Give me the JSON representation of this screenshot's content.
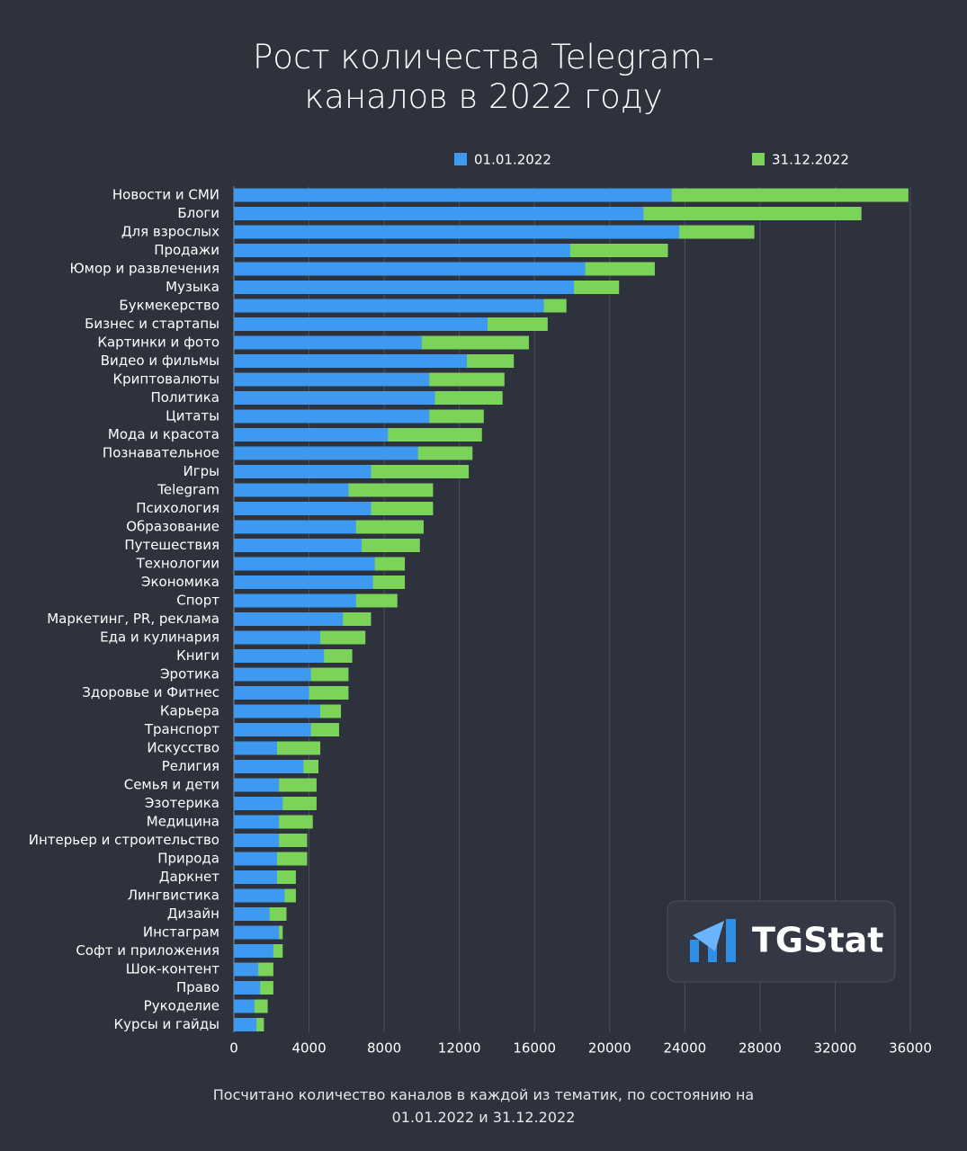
{
  "chart_data": {
    "type": "bar",
    "orientation": "horizontal",
    "title": "Рост количества Telegram-каналов в 2022 году",
    "footnote": "Посчитано количество каналов в каждой из тематик, по состоянию на 01.01.2022 и 31.12.2022",
    "logo": "TGStat",
    "categories": [
      "Новости и СМИ",
      "Блоги",
      "Для взрослых",
      "Продажи",
      "Юмор и развлечения",
      "Музыка",
      "Букмекерство",
      "Бизнес и стартапы",
      "Картинки и фото",
      "Видео и фильмы",
      "Криптовалюты",
      "Политика",
      "Цитаты",
      "Мода и красота",
      "Познавательное",
      "Игры",
      "Telegram",
      "Психология",
      "Образование",
      "Путешествия",
      "Технологии",
      "Экономика",
      "Спорт",
      "Маркетинг, PR, реклама",
      "Еда и кулинария",
      "Книги",
      "Эротика",
      "Здоровье и Фитнес",
      "Карьера",
      "Транспорт",
      "Искусство",
      "Религия",
      "Семья и дети",
      "Эзотерика",
      "Медицина",
      "Интерьер и строительство",
      "Природа",
      "Даркнет",
      "Лингвистика",
      "Дизайн",
      "Инстаграм",
      "Софт и приложения",
      "Шок-контент",
      "Право",
      "Рукоделие",
      "Курсы и гайды"
    ],
    "series": [
      {
        "name": "01.01.2022",
        "color": "#3d9af0",
        "values": [
          23300,
          21800,
          23700,
          17900,
          18700,
          18100,
          16500,
          13500,
          10000,
          12400,
          10400,
          10700,
          10400,
          8200,
          9800,
          7300,
          6100,
          7300,
          6500,
          6800,
          7500,
          7400,
          6500,
          5800,
          4600,
          4800,
          4100,
          4000,
          4600,
          4100,
          2300,
          3700,
          2400,
          2600,
          2400,
          2400,
          2300,
          2300,
          2700,
          1900,
          2400,
          2100,
          1300,
          1400,
          1100,
          1200
        ]
      },
      {
        "name": "31.12.2022",
        "color": "#7bd35a",
        "values": [
          35900,
          33400,
          27700,
          23100,
          22400,
          20500,
          17700,
          16700,
          15700,
          14900,
          14400,
          14300,
          13300,
          13200,
          12700,
          12500,
          10600,
          10600,
          10100,
          9900,
          9100,
          9100,
          8700,
          7300,
          7000,
          6300,
          6100,
          6100,
          5700,
          5600,
          4600,
          4500,
          4400,
          4400,
          4200,
          3900,
          3900,
          3300,
          3300,
          2800,
          2600,
          2600,
          2100,
          2100,
          1800,
          1600
        ]
      }
    ],
    "xlim": [
      0,
      36000
    ],
    "xticks": [
      0,
      4000,
      8000,
      12000,
      16000,
      20000,
      24000,
      28000,
      32000,
      36000
    ],
    "grid": true
  }
}
